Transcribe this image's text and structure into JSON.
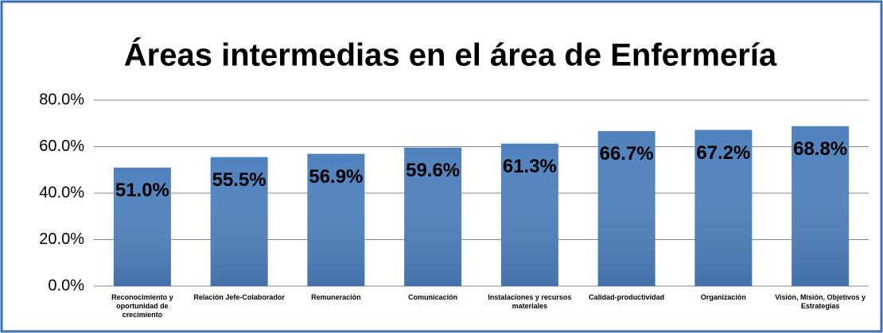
{
  "chart_data": {
    "type": "bar",
    "title": "Áreas intermedias en el área de Enfermería",
    "categories": [
      "Reconocimiento y oportunidad de crecimiento",
      "Relación Jefe-Colaborador",
      "Remuneración",
      "Comunicación",
      "Instalaciones y recursos materiales",
      "Calidad-productividad",
      "Organización",
      "Visión, Misión, Objetivos y Estrategias"
    ],
    "values": [
      51.0,
      55.5,
      56.9,
      59.6,
      61.3,
      66.7,
      67.2,
      68.8
    ],
    "value_labels": [
      "51.0%",
      "55.5%",
      "56.9%",
      "59.6%",
      "61.3%",
      "66.7%",
      "67.2%",
      "68.8%"
    ],
    "color": "#4f81bd",
    "ylim": [
      0,
      80
    ],
    "yticks": [
      {
        "value": 0,
        "label": "0.0%"
      },
      {
        "value": 20,
        "label": "20.0%"
      },
      {
        "value": 40,
        "label": "40.0%"
      },
      {
        "value": 60,
        "label": "60.0%"
      },
      {
        "value": 80,
        "label": "80.0%"
      }
    ],
    "grid": true
  }
}
